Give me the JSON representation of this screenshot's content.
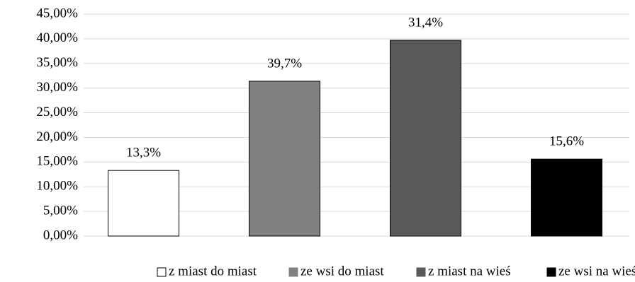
{
  "chart_data": {
    "type": "bar",
    "categories": [
      "z miast do miast",
      "ze wsi do miast",
      "z miast na wieś",
      "ze wsi na wieś"
    ],
    "series": [
      {
        "name": "z miast do miast",
        "color": "#ffffff",
        "values": [
          13.3,
          null,
          null,
          null
        ]
      },
      {
        "name": "ze wsi do miast",
        "color": "#808080",
        "values": [
          null,
          31.4,
          null,
          null
        ]
      },
      {
        "name": "z miast na wieś",
        "color": "#595959",
        "values": [
          null,
          null,
          39.7,
          null
        ]
      },
      {
        "name": "ze wsi na wieś",
        "color": "#000000",
        "values": [
          null,
          null,
          null,
          15.6
        ]
      }
    ],
    "annotations": [
      "13,3%",
      "39,7%",
      "31,4%",
      "15,6%"
    ],
    "ylim": [
      0,
      45
    ],
    "yticks": [
      {
        "value": 0,
        "label": "0,00%"
      },
      {
        "value": 5,
        "label": "5,00%"
      },
      {
        "value": 10,
        "label": "10,00%"
      },
      {
        "value": 15,
        "label": "15,00%"
      },
      {
        "value": 20,
        "label": "20,00%"
      },
      {
        "value": 25,
        "label": "25,00%"
      },
      {
        "value": 30,
        "label": "30,00%"
      },
      {
        "value": 35,
        "label": "35,00%"
      },
      {
        "value": 40,
        "label": "40,00%"
      },
      {
        "value": 45,
        "label": "45,00%"
      }
    ],
    "grid": true,
    "legend": "bottom"
  }
}
